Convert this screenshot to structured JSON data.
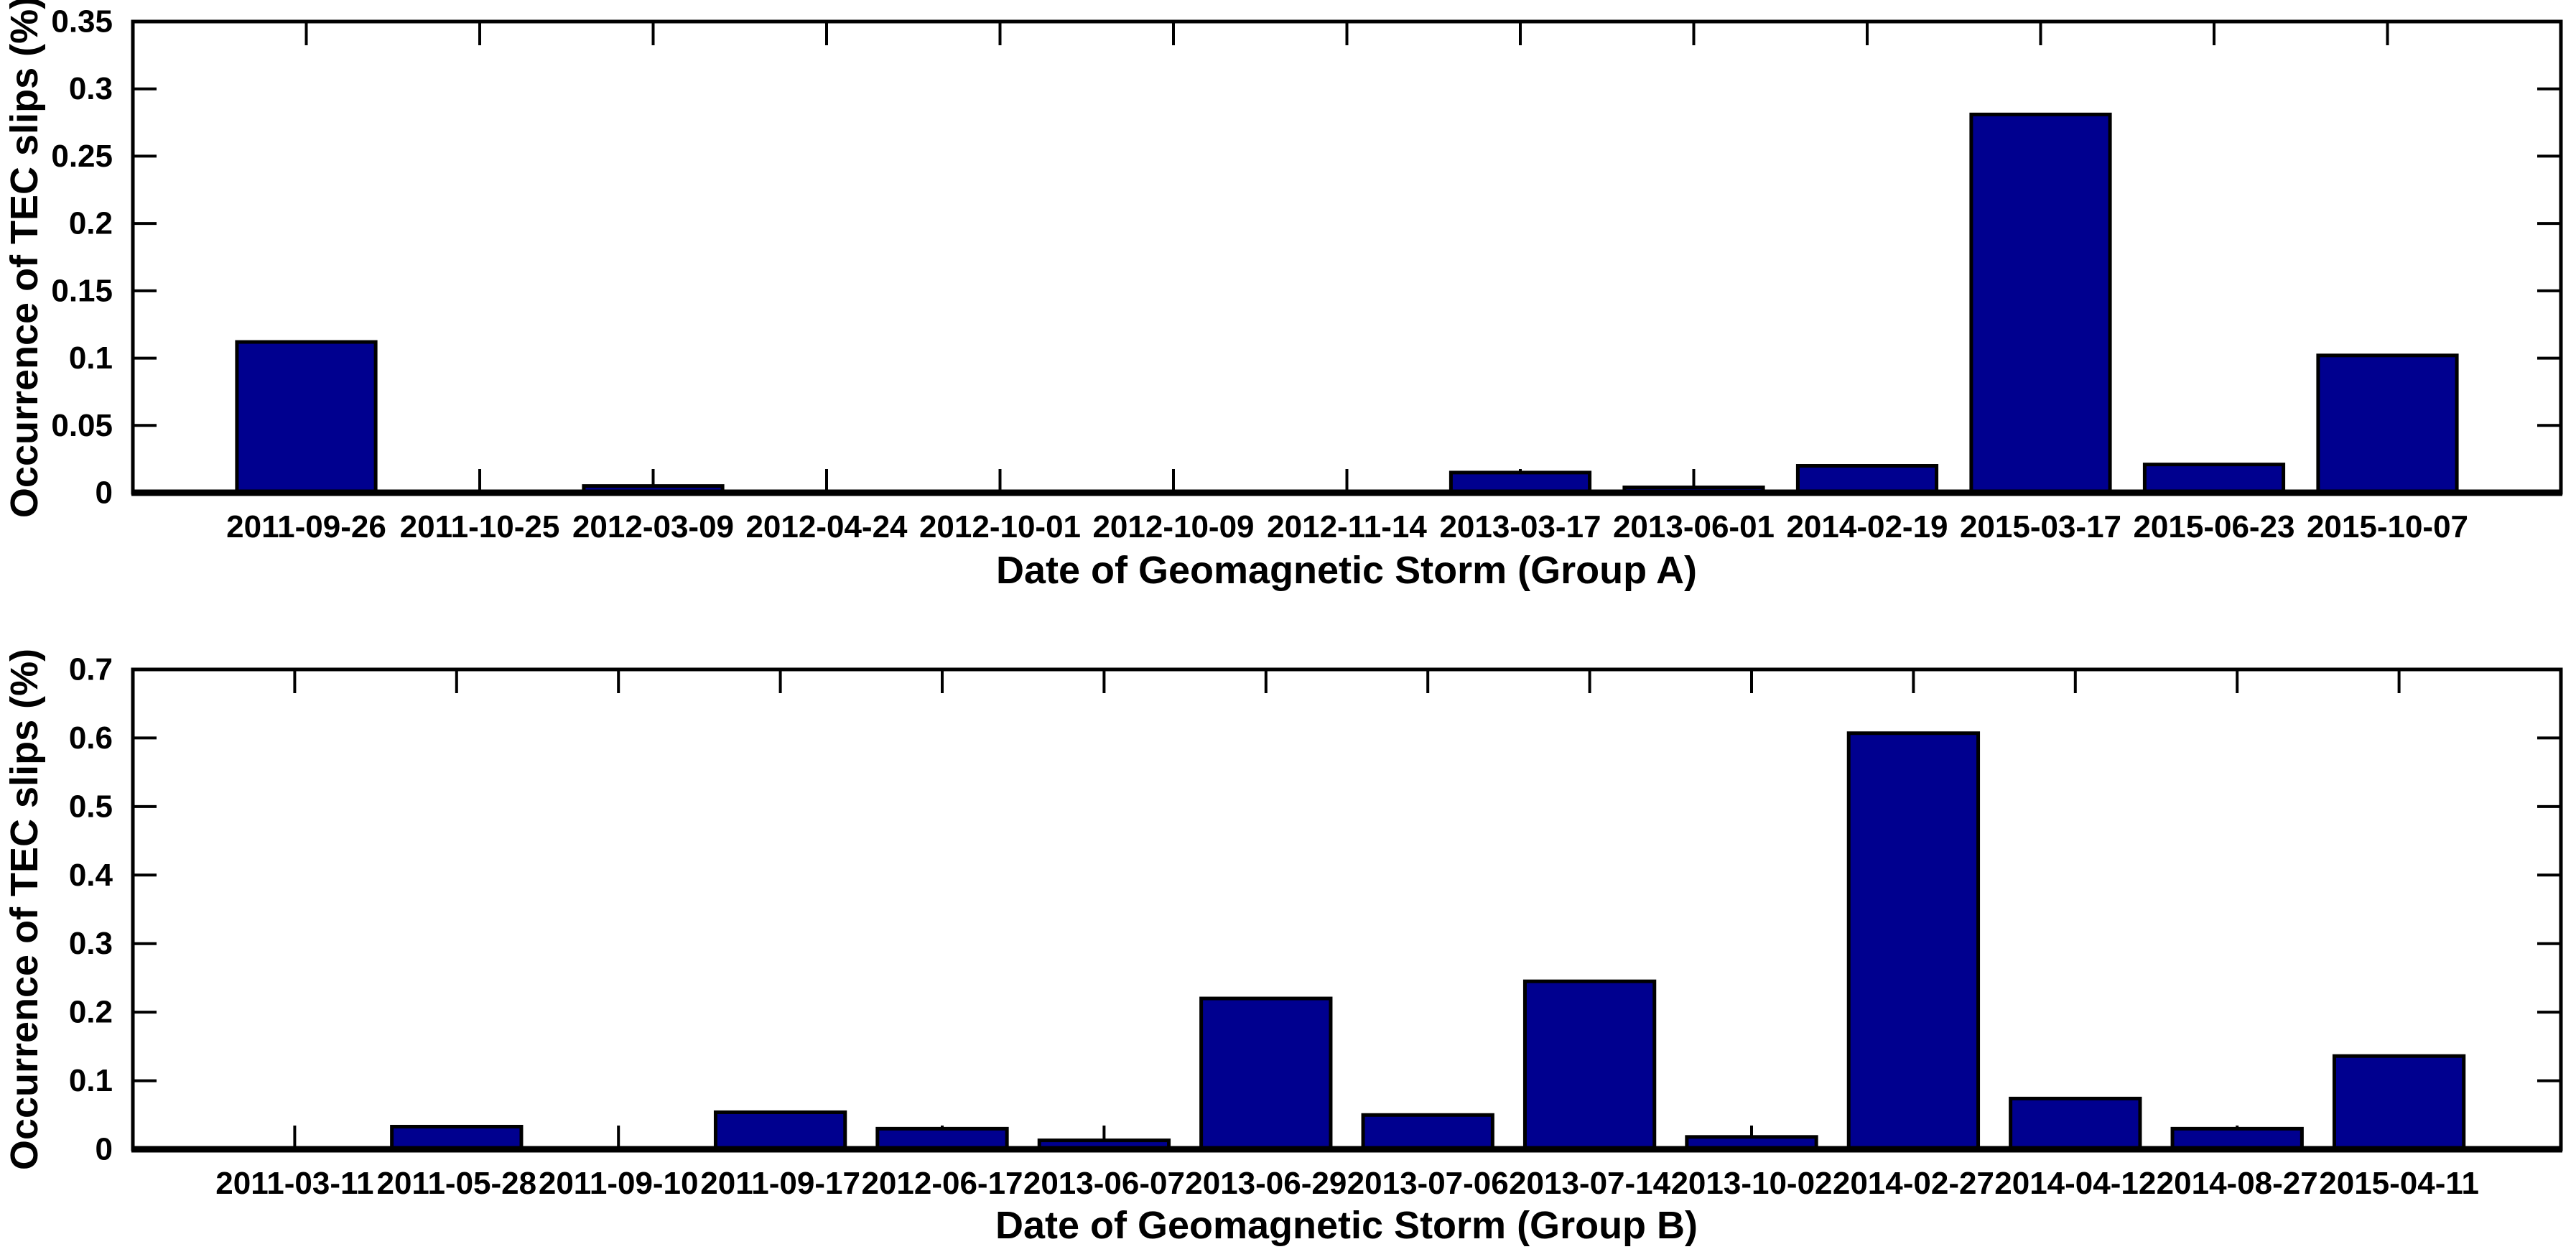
{
  "figure": {
    "background": "#FFFFFF",
    "bar_fill_color": "#00008F",
    "bar_edge_color": "#000000",
    "axis_color": "#000000",
    "text_color": "#000000"
  },
  "chart_data": [
    {
      "type": "bar",
      "panel": "top",
      "title": "",
      "ylabel": "Occurrence of TEC slips (%)",
      "xlabel": "Date of Geomagnetic Storm (Group A)",
      "categories": [
        "2011-09-26",
        "2011-10-25",
        "2012-03-09",
        "2012-04-24",
        "2012-10-01",
        "2012-10-09",
        "2012-11-14",
        "2013-03-17",
        "2013-06-01",
        "2014-02-19",
        "2015-03-17",
        "2015-06-23",
        "2015-10-07"
      ],
      "values": [
        0.112,
        0,
        0.005,
        0,
        0,
        0,
        0,
        0.015,
        0.004,
        0.02,
        0.281,
        0.021,
        0.102
      ],
      "ylim": [
        0,
        0.35
      ],
      "yticks": [
        0,
        0.05,
        0.1,
        0.15,
        0.2,
        0.25,
        0.3,
        0.35
      ],
      "ytick_labels": [
        "0",
        "0.05",
        "0.1",
        "0.15",
        "0.2",
        "0.25",
        "0.3",
        "0.35"
      ],
      "grid": false,
      "legend": "none",
      "bar_width_fraction": 0.8
    },
    {
      "type": "bar",
      "panel": "bottom",
      "title": "",
      "ylabel": "Occurrence of TEC slips (%)",
      "xlabel": "Date of Geomagnetic Storm (Group B)",
      "categories": [
        "2011-03-11",
        "2011-05-28",
        "2011-09-10",
        "2011-09-17",
        "2012-06-17",
        "2013-06-07",
        "2013-06-29",
        "2013-07-06",
        "2013-07-14",
        "2013-10-02",
        "2014-02-27",
        "2014-04-12",
        "2014-08-27",
        "2015-04-11"
      ],
      "values": [
        0,
        0.033,
        0,
        0.054,
        0.03,
        0.013,
        0.22,
        0.05,
        0.245,
        0.018,
        0.607,
        0.074,
        0.03,
        0.136
      ],
      "ylim": [
        0,
        0.7
      ],
      "yticks": [
        0,
        0.1,
        0.2,
        0.3,
        0.4,
        0.5,
        0.6,
        0.7
      ],
      "ytick_labels": [
        "0",
        "0.1",
        "0.2",
        "0.3",
        "0.4",
        "0.5",
        "0.6",
        "0.7"
      ],
      "grid": false,
      "legend": "none",
      "bar_width_fraction": 0.8
    }
  ]
}
